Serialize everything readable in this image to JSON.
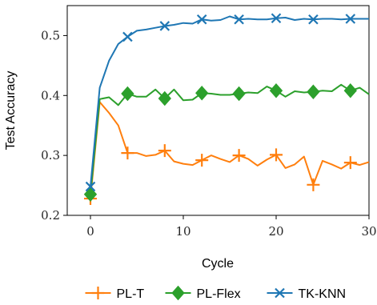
{
  "chart_data": {
    "type": "line",
    "xlabel": "Cycle",
    "ylabel": "Test Accuracy",
    "xlim": [
      -2.5,
      30
    ],
    "ylim": [
      0.2,
      0.55
    ],
    "xticks": [
      "0",
      "10",
      "20",
      "30"
    ],
    "yticks": [
      "0.2",
      "0.3",
      "0.4",
      "0.5"
    ],
    "legend_position": "bottom",
    "grid": false,
    "series": [
      {
        "name": "PL-T",
        "color": "#ff7f0e",
        "marker": "plus",
        "x": [
          0,
          1,
          2,
          3,
          4,
          5,
          6,
          7,
          8,
          9,
          10,
          11,
          12,
          13,
          14,
          15,
          16,
          17,
          18,
          19,
          20,
          21,
          22,
          23,
          24,
          25,
          26,
          27,
          28,
          29,
          30
        ],
        "y": [
          0.228,
          0.389,
          0.371,
          0.35,
          0.304,
          0.304,
          0.299,
          0.301,
          0.308,
          0.29,
          0.286,
          0.284,
          0.292,
          0.3,
          0.294,
          0.289,
          0.3,
          0.294,
          0.283,
          0.293,
          0.301,
          0.279,
          0.285,
          0.298,
          0.251,
          0.291,
          0.285,
          0.278,
          0.288,
          0.284,
          0.289
        ],
        "marker_x": [
          0,
          4,
          8,
          12,
          16,
          20,
          24,
          28
        ]
      },
      {
        "name": "PL-Flex",
        "color": "#2ca02c",
        "marker": "diamond",
        "x": [
          0,
          1,
          2,
          3,
          4,
          5,
          6,
          7,
          8,
          9,
          10,
          11,
          12,
          13,
          14,
          15,
          16,
          17,
          18,
          19,
          20,
          21,
          22,
          23,
          24,
          25,
          26,
          27,
          28,
          29,
          30
        ],
        "y": [
          0.235,
          0.394,
          0.397,
          0.384,
          0.403,
          0.398,
          0.398,
          0.41,
          0.395,
          0.41,
          0.392,
          0.393,
          0.404,
          0.403,
          0.401,
          0.401,
          0.403,
          0.405,
          0.404,
          0.415,
          0.408,
          0.398,
          0.407,
          0.405,
          0.406,
          0.408,
          0.407,
          0.418,
          0.408,
          0.413,
          0.402
        ],
        "marker_x": [
          0,
          4,
          8,
          12,
          16,
          20,
          24,
          28
        ]
      },
      {
        "name": "TK-KNN",
        "color": "#1f77b4",
        "marker": "x",
        "x": [
          0,
          1,
          2,
          3,
          4,
          5,
          6,
          7,
          8,
          9,
          10,
          11,
          12,
          13,
          14,
          15,
          16,
          17,
          18,
          19,
          20,
          21,
          22,
          23,
          24,
          25,
          26,
          27,
          28,
          29,
          30
        ],
        "y": [
          0.248,
          0.413,
          0.458,
          0.486,
          0.498,
          0.508,
          0.51,
          0.513,
          0.516,
          0.518,
          0.521,
          0.52,
          0.527,
          0.525,
          0.526,
          0.532,
          0.527,
          0.528,
          0.527,
          0.527,
          0.529,
          0.53,
          0.526,
          0.528,
          0.527,
          0.528,
          0.528,
          0.527,
          0.528,
          0.528,
          0.528
        ],
        "marker_x": [
          0,
          4,
          8,
          12,
          16,
          20,
          24,
          28
        ]
      }
    ]
  }
}
